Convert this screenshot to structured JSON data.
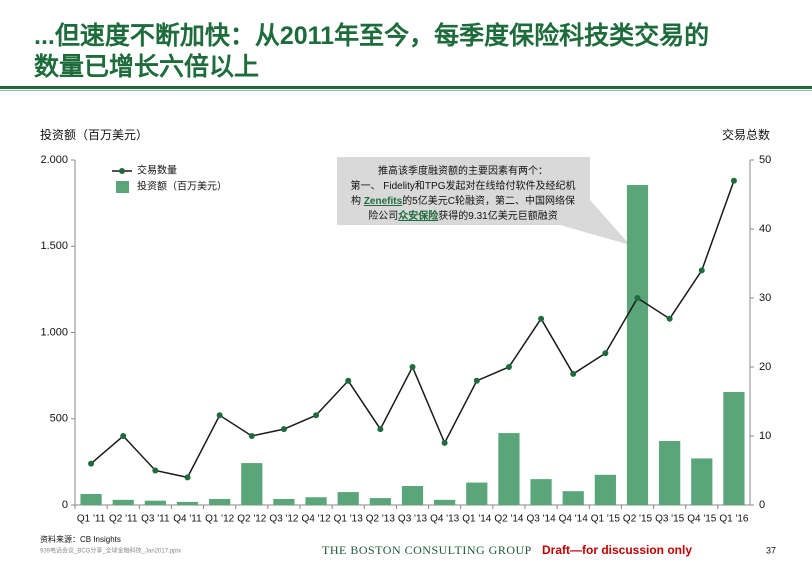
{
  "chart_data": {
    "type": "bar-line",
    "title_lines": [
      "...但速度不断加快：从2011年至今，每季度保险科技类交易的",
      "数量已增长六倍以上"
    ],
    "y_label": "投资额（百万美元）",
    "y2_label": "交易总数",
    "categories": [
      "Q1 '11",
      "Q2 '11",
      "Q3 '11",
      "Q4 '11",
      "Q1 '12",
      "Q2 '12",
      "Q3 '12",
      "Q4 '12",
      "Q1 '13",
      "Q2 '13",
      "Q3 '13",
      "Q4 '13",
      "Q1 '14",
      "Q2 '14",
      "Q3 '14",
      "Q4 '14",
      "Q1 '15",
      "Q2 '15",
      "Q3 '15",
      "Q4 '15",
      "Q1 '16"
    ],
    "series": [
      {
        "name": "交易数量",
        "type": "line",
        "axis": "y2",
        "color": "#1a1a1a",
        "marker_color": "#1e6b3c",
        "values": [
          6,
          10,
          5,
          4,
          13,
          10,
          11,
          13,
          18,
          11,
          20,
          9,
          18,
          20,
          27,
          19,
          22,
          30,
          27,
          34,
          47
        ]
      },
      {
        "name": "投资额（百万美元）",
        "type": "bar",
        "axis": "y",
        "color": "#5aa57a",
        "values": [
          64,
          30,
          25,
          18,
          35,
          243,
          35,
          45,
          75,
          40,
          110,
          30,
          130,
          417,
          150,
          80,
          175,
          1855,
          371,
          270,
          655
        ]
      }
    ],
    "ylim": [
      0,
      2000
    ],
    "yticks": [
      {
        "value": 0,
        "label": "0"
      },
      {
        "value": 500,
        "label": "500"
      },
      {
        "value": 1000,
        "label": "1.000"
      },
      {
        "value": 1500,
        "label": "1.500"
      },
      {
        "value": 2000,
        "label": "2.000"
      }
    ],
    "y2lim": [
      0,
      50
    ],
    "y2ticks": [
      0,
      10,
      20,
      30,
      40,
      50
    ],
    "annotation": {
      "lines": [
        [
          {
            "text": "推高该季度融资额的主要因素有两个："
          }
        ],
        [
          {
            "text": "第一、 Fidelity和TPG发起对在线给付软件及经纪机"
          }
        ],
        [
          {
            "text": "构 "
          },
          {
            "text": "Zenefits",
            "link": true
          },
          {
            "text": "的5亿美元C轮融资，第二、中国网络保"
          }
        ],
        [
          {
            "text": "险公司"
          },
          {
            "text": "众安保险",
            "link": true
          },
          {
            "text": "获得的9.31亿美元巨额融资"
          }
        ]
      ]
    }
  },
  "footer": {
    "source": "资料来源：CB Insights",
    "file": "939电话会议_BCG分享_全球金融科技_Jan2017.pptx",
    "logo": "THE BOSTON CONSULTING GROUP",
    "draft": "Draft—for discussion only",
    "page": "37"
  }
}
